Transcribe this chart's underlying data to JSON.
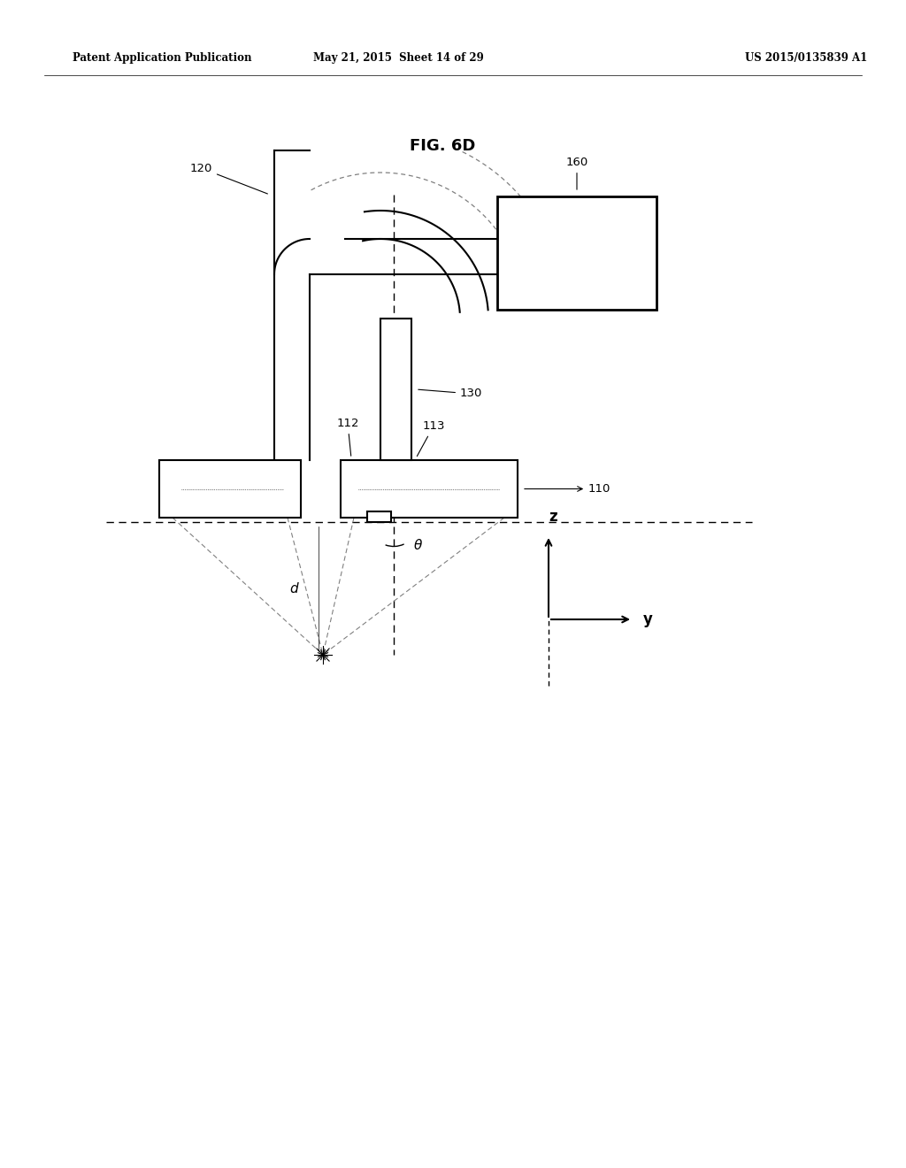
{
  "bg_color": "#ffffff",
  "title": "FIG. 6D",
  "header_left": "Patent Application Publication",
  "header_mid": "May 21, 2015  Sheet 14 of 29",
  "header_right": "US 2015/0135839 A1"
}
